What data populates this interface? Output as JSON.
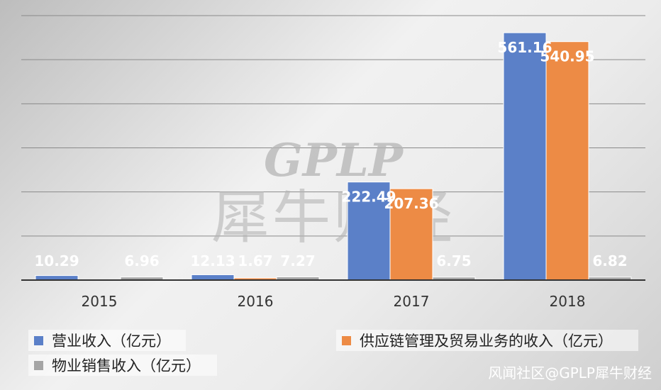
{
  "chart_data": {
    "type": "bar",
    "title": "",
    "xlabel": "",
    "ylabel": "",
    "ylim": [
      0,
      600
    ],
    "grid": true,
    "legend_position": "bottom",
    "categories": [
      "2015",
      "2016",
      "2017",
      "2018"
    ],
    "series": [
      {
        "name": "营业收入（亿元）",
        "color": "#5B80C8",
        "values": [
          10.29,
          12.13,
          222.49,
          561.16
        ],
        "labels": [
          "10.29",
          "12.13",
          "222.49",
          "561.16"
        ]
      },
      {
        "name": "供应链管理及贸易业务的收入（亿元）",
        "color": "#ED8B45",
        "values": [
          null,
          1.67,
          207.36,
          540.95
        ],
        "labels": [
          "",
          "1.67",
          "207.36",
          "540.95"
        ]
      },
      {
        "name": "物业销售收入（亿元）",
        "color": "#A5A5A5",
        "values": [
          6.96,
          7.27,
          6.75,
          6.82
        ],
        "labels": [
          "6.96",
          "7.27",
          "6.75",
          "6.82"
        ]
      }
    ]
  },
  "watermark": {
    "logo_text": "GPLP",
    "logo_chinese": "犀牛财经",
    "source": "风闻社区@GPLP犀牛财经"
  }
}
